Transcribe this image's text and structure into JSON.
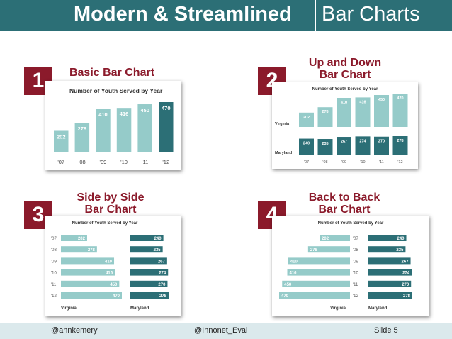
{
  "slide": {
    "title_main": "Modern & Streamlined",
    "title_sub": "Bar Charts",
    "footer_left": "@annkemery",
    "footer_center": "@Innonet_Eval",
    "footer_right": "Slide 5",
    "colors": {
      "title_bg": "#2c6f76",
      "badge": "#8b1a2b",
      "virginia": "#95cbc9",
      "maryland": "#2c6f76",
      "footer_bg": "#dbe9ec"
    }
  },
  "panels": [
    {
      "number": "1",
      "heading_lines": [
        "Basic Bar Chart"
      ]
    },
    {
      "number": "2",
      "heading_lines": [
        "Up and Down",
        "Bar Chart"
      ]
    },
    {
      "number": "3",
      "heading_lines": [
        "Side by Side",
        "Bar Chart"
      ]
    },
    {
      "number": "4",
      "heading_lines": [
        "Back to Back",
        "Bar Chart"
      ]
    }
  ],
  "chart_data": [
    {
      "type": "bar",
      "title": "Number of Youth Served by Year",
      "categories": [
        "'07",
        "'08",
        "'09",
        "'10",
        "'11",
        "'12"
      ],
      "values": [
        202,
        278,
        410,
        416,
        450,
        470
      ],
      "ylim": [
        0,
        470
      ]
    },
    {
      "type": "bar",
      "title": "Number of Youth Served by Year",
      "categories": [
        "'07",
        "'08",
        "'09",
        "'10",
        "'11",
        "'12"
      ],
      "series": [
        {
          "name": "Virginia",
          "values": [
            202,
            278,
            410,
            416,
            450,
            470
          ]
        },
        {
          "name": "Maryland",
          "values": [
            240,
            235,
            267,
            274,
            270,
            278
          ]
        }
      ]
    },
    {
      "type": "bar",
      "title": "Number of Youth Served by Year",
      "categories": [
        "'07",
        "'08",
        "'09",
        "'10",
        "'11",
        "'12"
      ],
      "series": [
        {
          "name": "Virginia",
          "values": [
            202,
            278,
            410,
            416,
            450,
            470
          ]
        },
        {
          "name": "Maryland",
          "values": [
            240,
            235,
            267,
            274,
            270,
            278
          ]
        }
      ]
    },
    {
      "type": "bar",
      "title": "Number of Youth Served by Year",
      "categories": [
        "'07",
        "'08",
        "'09",
        "'10",
        "'11",
        "'12"
      ],
      "series": [
        {
          "name": "Virginia",
          "values": [
            202,
            278,
            410,
            416,
            450,
            470
          ]
        },
        {
          "name": "Maryland",
          "values": [
            240,
            235,
            267,
            274,
            270,
            278
          ]
        }
      ]
    }
  ]
}
